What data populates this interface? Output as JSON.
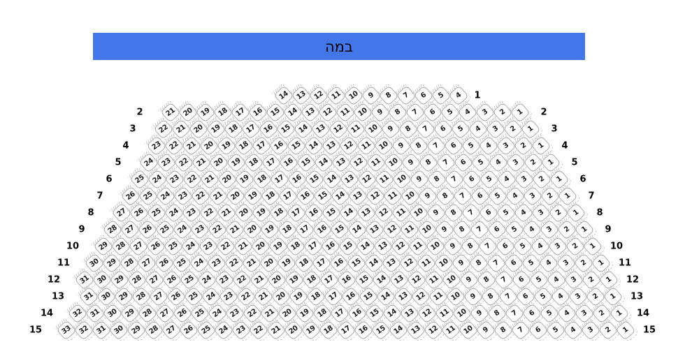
{
  "stage": {
    "label": "במה",
    "background_color": "#4376e8",
    "text_color": "#000000"
  },
  "seat_style": {
    "fill": "#ffffff",
    "border_color": "#ababab",
    "number_color": "#1b1b1b"
  },
  "rows": [
    {
      "label": "1",
      "left_label": "",
      "right_label": "1",
      "seats": [
        14,
        13,
        12,
        11,
        10,
        9,
        8,
        7,
        6,
        5,
        4
      ]
    },
    {
      "label": "2",
      "left_label": "2",
      "right_label": "2",
      "seats": [
        21,
        20,
        19,
        18,
        17,
        16,
        15,
        14,
        13,
        12,
        11,
        10,
        9,
        8,
        7,
        6,
        5,
        4,
        3,
        2,
        1
      ]
    },
    {
      "label": "3",
      "left_label": "3",
      "right_label": "3",
      "seats": [
        22,
        21,
        20,
        19,
        18,
        17,
        16,
        15,
        14,
        13,
        12,
        11,
        10,
        9,
        8,
        7,
        6,
        5,
        4,
        3,
        2,
        1
      ]
    },
    {
      "label": "4",
      "left_label": "4",
      "right_label": "4",
      "seats": [
        23,
        22,
        21,
        20,
        19,
        18,
        17,
        16,
        15,
        14,
        13,
        12,
        11,
        10,
        9,
        8,
        7,
        6,
        5,
        4,
        3,
        2,
        1
      ]
    },
    {
      "label": "5",
      "left_label": "5",
      "right_label": "5",
      "seats": [
        24,
        23,
        22,
        21,
        20,
        19,
        18,
        17,
        16,
        15,
        14,
        13,
        12,
        11,
        10,
        9,
        8,
        7,
        6,
        5,
        4,
        3,
        2,
        1
      ]
    },
    {
      "label": "6",
      "left_label": "6",
      "right_label": "6",
      "seats": [
        25,
        24,
        23,
        22,
        21,
        20,
        19,
        18,
        17,
        16,
        15,
        14,
        13,
        12,
        11,
        10,
        9,
        8,
        7,
        6,
        5,
        4,
        3,
        2,
        1
      ]
    },
    {
      "label": "7",
      "left_label": "7",
      "right_label": "7",
      "seats": [
        26,
        25,
        24,
        23,
        22,
        21,
        20,
        19,
        18,
        17,
        16,
        15,
        14,
        13,
        12,
        11,
        10,
        9,
        8,
        7,
        6,
        5,
        4,
        3,
        2,
        1
      ]
    },
    {
      "label": "8",
      "left_label": "8",
      "right_label": "8",
      "seats": [
        27,
        26,
        25,
        24,
        23,
        22,
        21,
        20,
        19,
        18,
        17,
        16,
        15,
        14,
        13,
        12,
        11,
        10,
        9,
        8,
        7,
        6,
        5,
        4,
        3,
        2,
        1
      ]
    },
    {
      "label": "9",
      "left_label": "9",
      "right_label": "9",
      "seats": [
        28,
        27,
        26,
        25,
        24,
        23,
        22,
        21,
        20,
        19,
        18,
        17,
        16,
        15,
        14,
        13,
        12,
        11,
        10,
        9,
        8,
        7,
        6,
        5,
        4,
        3,
        2,
        1
      ]
    },
    {
      "label": "10",
      "left_label": "10",
      "right_label": "10",
      "seats": [
        29,
        28,
        27,
        26,
        25,
        24,
        23,
        22,
        21,
        20,
        19,
        18,
        17,
        16,
        15,
        14,
        13,
        12,
        11,
        10,
        9,
        8,
        7,
        6,
        5,
        4,
        3,
        2,
        1
      ]
    },
    {
      "label": "11",
      "left_label": "11",
      "right_label": "11",
      "seats": [
        30,
        29,
        28,
        27,
        26,
        25,
        24,
        23,
        22,
        21,
        20,
        19,
        18,
        17,
        16,
        15,
        14,
        13,
        12,
        11,
        10,
        9,
        8,
        7,
        6,
        5,
        4,
        3,
        2,
        1
      ]
    },
    {
      "label": "12",
      "left_label": "12",
      "right_label": "12",
      "seats": [
        31,
        30,
        29,
        28,
        27,
        26,
        25,
        24,
        23,
        22,
        21,
        20,
        19,
        18,
        17,
        16,
        15,
        14,
        13,
        12,
        11,
        10,
        9,
        8,
        7,
        6,
        5,
        4,
        3,
        2,
        1
      ]
    },
    {
      "label": "13",
      "left_label": "13",
      "right_label": "13",
      "seats": [
        31,
        30,
        29,
        28,
        27,
        26,
        25,
        24,
        23,
        22,
        21,
        20,
        19,
        18,
        17,
        16,
        15,
        14,
        13,
        12,
        11,
        10,
        9,
        8,
        7,
        6,
        5,
        4,
        3,
        2,
        1
      ]
    },
    {
      "label": "14",
      "left_label": "14",
      "right_label": "14",
      "seats": [
        32,
        31,
        30,
        29,
        28,
        27,
        26,
        25,
        24,
        23,
        22,
        21,
        20,
        19,
        18,
        17,
        16,
        15,
        14,
        13,
        12,
        11,
        10,
        9,
        8,
        7,
        6,
        5,
        4,
        3,
        2,
        1
      ]
    },
    {
      "label": "15",
      "left_label": "15",
      "right_label": "15",
      "seats": [
        33,
        32,
        31,
        30,
        29,
        28,
        27,
        26,
        25,
        24,
        23,
        22,
        21,
        20,
        19,
        18,
        17,
        16,
        15,
        14,
        13,
        12,
        11,
        10,
        9,
        8,
        7,
        6,
        5,
        4,
        3,
        2,
        1
      ]
    }
  ]
}
